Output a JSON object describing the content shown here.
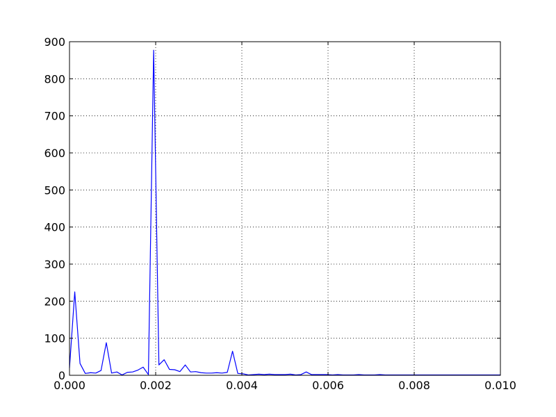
{
  "chart_data": {
    "type": "line",
    "title": "",
    "xlabel": "",
    "ylabel": "",
    "xlim": [
      0.0,
      0.01
    ],
    "ylim": [
      0,
      900
    ],
    "grid": true,
    "x_ticks": [
      "0.000",
      "0.002",
      "0.004",
      "0.006",
      "0.008",
      "0.010"
    ],
    "y_ticks": [
      "0",
      "100",
      "200",
      "300",
      "400",
      "500",
      "600",
      "700",
      "800",
      "900"
    ],
    "series": [
      {
        "color": "#0000ff",
        "x": [
          0.0,
          0.000122,
          0.000244,
          0.000366,
          0.000488,
          0.00061,
          0.000732,
          0.000854,
          0.000977,
          0.001099,
          0.001221,
          0.001343,
          0.001465,
          0.001587,
          0.001709,
          0.001831,
          0.001953,
          0.002075,
          0.002197,
          0.002319,
          0.002441,
          0.002563,
          0.002686,
          0.002808,
          0.00293,
          0.003052,
          0.003174,
          0.003296,
          0.003418,
          0.00354,
          0.003662,
          0.003784,
          0.003906,
          0.004028,
          0.00415,
          0.004272,
          0.004395,
          0.004517,
          0.004639,
          0.004761,
          0.004883,
          0.005005,
          0.005127,
          0.005249,
          0.005371,
          0.005493,
          0.005615,
          0.005737,
          0.005859,
          0.005981,
          0.006104,
          0.006226,
          0.006348,
          0.00647,
          0.006592,
          0.006714,
          0.006836,
          0.006958,
          0.00708,
          0.007202,
          0.007324,
          0.007446,
          0.007568,
          0.00769,
          0.007813,
          0.007935,
          0.008057,
          0.008179,
          0.008301,
          0.008423,
          0.008545,
          0.008667,
          0.008789,
          0.008911,
          0.009033,
          0.009155,
          0.009277,
          0.009399,
          0.009521,
          0.009644,
          0.009766,
          0.009888,
          0.01
        ],
        "y": [
          20,
          225,
          32,
          5,
          7,
          6,
          13,
          88,
          6,
          9,
          1,
          8,
          9,
          14,
          22,
          2,
          877,
          28,
          42,
          16,
          15,
          10,
          28,
          9,
          10,
          7,
          6,
          6,
          7,
          6,
          8,
          65,
          5,
          4,
          1,
          2,
          3,
          2,
          3,
          2,
          2,
          2,
          3,
          1,
          2,
          9,
          2,
          2,
          2,
          2,
          1,
          2,
          1,
          1,
          1,
          2,
          1,
          1,
          1,
          2,
          1,
          1,
          1,
          1,
          1,
          1,
          1,
          1,
          1,
          1,
          1,
          1,
          1,
          1,
          1,
          1,
          1,
          1,
          1,
          1,
          1,
          1,
          1
        ]
      }
    ]
  }
}
